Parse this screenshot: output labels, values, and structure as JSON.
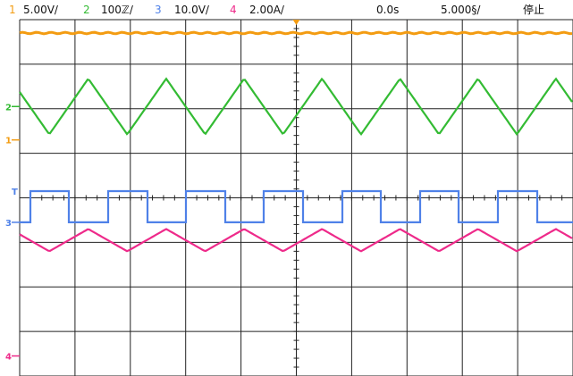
{
  "status_bar": {
    "channels": [
      {
        "number": "1",
        "scale": "5.00V/",
        "color": "#f39c12"
      },
      {
        "number": "2",
        "scale": "100ℤ/",
        "color": "#33bb33"
      },
      {
        "number": "3",
        "scale": "10.0V/",
        "color": "#4f81e8"
      },
      {
        "number": "4",
        "scale": "2.00A/",
        "color": "#ee2a8a"
      }
    ],
    "time_offset": "0.0s",
    "time_scale": "5.000§/",
    "run_state": "停止"
  },
  "markers": {
    "ch1": "1",
    "ch2": "2",
    "ch3": "3",
    "ch4": "4",
    "trigger": "T"
  },
  "colors": {
    "grid": "#222222",
    "ch1": "#f39c12",
    "ch2": "#33bb33",
    "ch3": "#4f81e8",
    "ch4": "#ee2a8a",
    "trigger_marker": "#f39c12",
    "trigger_level_marker": "#4f81e8"
  },
  "chart_data": {
    "type": "line",
    "grid": true,
    "divisions": {
      "x": 10,
      "y": 8
    },
    "series": [
      {
        "name": "1",
        "shape": "flat",
        "level_div": 3.7,
        "cycles_per_screen": 0
      },
      {
        "name": "2",
        "shape": "triangle",
        "level_div": 2.05,
        "peak_to_peak_div": 1.25,
        "cycles_per_screen": 7.1
      },
      {
        "name": "3",
        "shape": "square",
        "low_div": -0.55,
        "high_div": 0.15,
        "cycles_per_screen": 7.1
      },
      {
        "name": "4",
        "shape": "triangle",
        "level_div": -0.95,
        "peak_to_peak_div": 0.5,
        "cycles_per_screen": 7.1
      }
    ]
  }
}
